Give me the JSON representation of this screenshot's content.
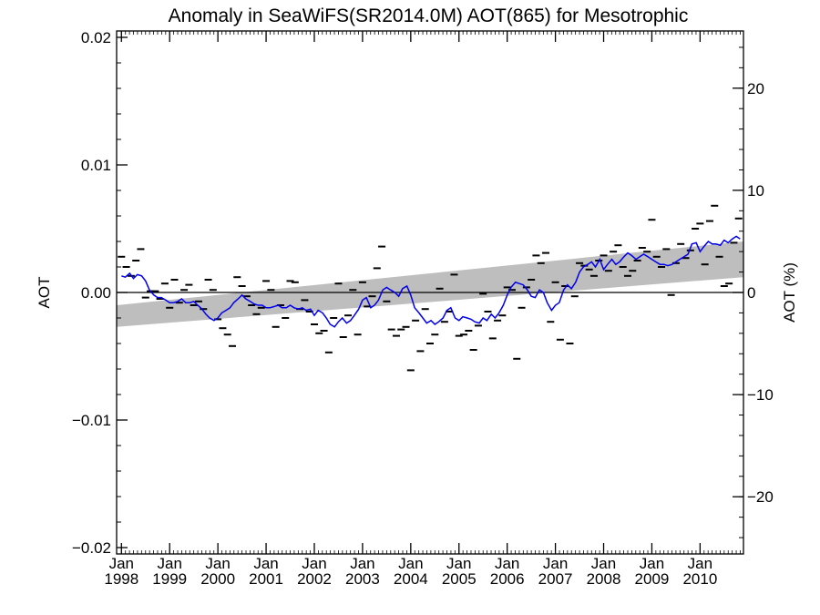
{
  "chart_data": {
    "type": "line",
    "title": "Anomaly in SeaWiFS(SR2014.0M) AOT(865) for Mesotrophic",
    "ylabel": "AOT",
    "y2label": "AOT (%)",
    "xlabel": "",
    "xlim": [
      1997.9,
      2010.9
    ],
    "ylim": [
      -0.0205,
      0.0205
    ],
    "y2lim": [
      -25.6,
      25.6
    ],
    "grid": false,
    "legend": "none",
    "x_ticks": [
      {
        "value": 1998,
        "month": "Jan",
        "year": "1998"
      },
      {
        "value": 1999,
        "month": "Jan",
        "year": "1999"
      },
      {
        "value": 2000,
        "month": "Jan",
        "year": "2000"
      },
      {
        "value": 2001,
        "month": "Jan",
        "year": "2001"
      },
      {
        "value": 2002,
        "month": "Jan",
        "year": "2002"
      },
      {
        "value": 2003,
        "month": "Jan",
        "year": "2003"
      },
      {
        "value": 2004,
        "month": "Jan",
        "year": "2004"
      },
      {
        "value": 2005,
        "month": "Jan",
        "year": "2005"
      },
      {
        "value": 2006,
        "month": "Jan",
        "year": "2006"
      },
      {
        "value": 2007,
        "month": "Jan",
        "year": "2007"
      },
      {
        "value": 2008,
        "month": "Jan",
        "year": "2008"
      },
      {
        "value": 2009,
        "month": "Jan",
        "year": "2009"
      },
      {
        "value": 2010,
        "month": "Jan",
        "year": "2010"
      }
    ],
    "y_ticks": [
      {
        "value": 0.02,
        "label": "0.02"
      },
      {
        "value": 0.01,
        "label": "0.01"
      },
      {
        "value": 0.0,
        "label": "0.00"
      },
      {
        "value": -0.01,
        "label": "−0.01"
      },
      {
        "value": -0.02,
        "label": "−0.02"
      }
    ],
    "y2_ticks": [
      {
        "value": 20,
        "label": "20"
      },
      {
        "value": 10,
        "label": "10"
      },
      {
        "value": 0,
        "label": "0"
      },
      {
        "value": -10,
        "label": "−10"
      },
      {
        "value": -20,
        "label": "−20"
      }
    ],
    "reference_line": 0.0,
    "trend_band": {
      "x": [
        1997.9,
        2010.9
      ],
      "lower": [
        -0.0027,
        0.0012
      ],
      "upper": [
        -0.001,
        0.004
      ],
      "color": "#bebebe"
    },
    "colors": {
      "running_mean": "#0000ee",
      "monthly": "#000000",
      "reference": "#000000"
    },
    "series": [
      {
        "type": "line",
        "x": [
          1998.0,
          1998.08,
          1998.17,
          1998.25,
          1998.33,
          1998.42,
          1998.5,
          1998.58,
          1998.67,
          1998.75,
          1998.83,
          1998.92,
          1999.0,
          1999.08,
          1999.17,
          1999.25,
          1999.33,
          1999.42,
          1999.5,
          1999.58,
          1999.67,
          1999.75,
          1999.83,
          1999.92,
          2000.0,
          2000.08,
          2000.17,
          2000.25,
          2000.33,
          2000.42,
          2000.5,
          2000.58,
          2000.67,
          2000.75,
          2000.83,
          2000.92,
          2001.0,
          2001.08,
          2001.17,
          2001.25,
          2001.33,
          2001.42,
          2001.5,
          2001.58,
          2001.67,
          2001.75,
          2001.83,
          2001.92,
          2002.0,
          2002.08,
          2002.17,
          2002.25,
          2002.33,
          2002.42,
          2002.5,
          2002.58,
          2002.67,
          2002.75,
          2002.83,
          2002.92,
          2003.0,
          2003.08,
          2003.17,
          2003.25,
          2003.33,
          2003.42,
          2003.5,
          2003.58,
          2003.67,
          2003.75,
          2003.83,
          2003.92,
          2004.0,
          2004.08,
          2004.17,
          2004.25,
          2004.33,
          2004.42,
          2004.5,
          2004.58,
          2004.67,
          2004.75,
          2004.83,
          2004.92,
          2005.0,
          2005.08,
          2005.17,
          2005.25,
          2005.33,
          2005.42,
          2005.5,
          2005.58,
          2005.67,
          2005.75,
          2005.83,
          2005.92,
          2006.0,
          2006.08,
          2006.17,
          2006.25,
          2006.33,
          2006.42,
          2006.5,
          2006.58,
          2006.67,
          2006.75,
          2006.83,
          2006.92,
          2007.0,
          2007.08,
          2007.17,
          2007.25,
          2007.33,
          2007.42,
          2007.5,
          2007.58,
          2007.67,
          2007.75,
          2007.83,
          2007.92,
          2008.0,
          2008.08,
          2008.17,
          2008.25,
          2008.33,
          2008.42,
          2008.5,
          2008.58,
          2008.67,
          2008.75,
          2008.83,
          2008.92,
          2009.0,
          2009.08,
          2009.17,
          2009.25,
          2009.33,
          2009.42,
          2009.5,
          2009.58,
          2009.67,
          2009.75,
          2009.83,
          2009.92,
          2010.0,
          2010.08,
          2010.17,
          2010.25,
          2010.33,
          2010.42,
          2010.5,
          2010.58,
          2010.67,
          2010.75,
          2010.83
        ],
        "y": [
          0.0013,
          0.0012,
          0.0015,
          0.0011,
          0.0014,
          0.0013,
          0.0009,
          0.0002,
          -0.0002,
          -0.0004,
          -0.0004,
          -0.0006,
          -0.0008,
          -0.0008,
          -0.0007,
          -0.0005,
          -0.0008,
          -0.0008,
          -0.0007,
          -0.001,
          -0.0013,
          -0.0017,
          -0.002,
          -0.0022,
          -0.002,
          -0.0016,
          -0.0014,
          -0.0012,
          -0.0008,
          -0.0005,
          -0.0002,
          -0.0005,
          -0.0007,
          -0.0009,
          -0.001,
          -0.001,
          -0.0012,
          -0.0012,
          -0.0011,
          -0.001,
          -0.0012,
          -0.0012,
          -0.001,
          -0.0012,
          -0.0013,
          -0.0012,
          -0.0014,
          -0.0013,
          -0.0018,
          -0.0014,
          -0.0016,
          -0.002,
          -0.0025,
          -0.0027,
          -0.0023,
          -0.002,
          -0.0024,
          -0.0022,
          -0.0018,
          -0.0013,
          -0.0006,
          -0.0004,
          -0.0012,
          -0.001,
          -0.0006,
          0.0002,
          0.0004,
          0.0002,
          0.0,
          -0.0003,
          0.0003,
          0.0005,
          -0.0002,
          -0.0012,
          -0.0016,
          -0.002,
          -0.0024,
          -0.0022,
          -0.0025,
          -0.0023,
          -0.002,
          -0.0014,
          -0.0012,
          -0.002,
          -0.0022,
          -0.0019,
          -0.002,
          -0.0021,
          -0.0023,
          -0.0024,
          -0.002,
          -0.0022,
          -0.0017,
          -0.002,
          -0.0016,
          -0.001,
          -0.0002,
          0.0004,
          0.0008,
          0.0007,
          0.0006,
          0.0002,
          -0.0003,
          -0.0004,
          0.0002,
          0.0,
          -0.0008,
          -0.0014,
          -0.001,
          -0.0008,
          0.0002,
          0.0006,
          0.0003,
          0.0008,
          0.0016,
          0.002,
          0.0022,
          0.0024,
          0.002,
          0.0026,
          0.0018,
          0.0022,
          0.0026,
          0.0022,
          0.0024,
          0.0028,
          0.0031,
          0.0029,
          0.0026,
          0.0028,
          0.003,
          0.0028,
          0.0026,
          0.0024,
          0.0022,
          0.0022,
          0.0021,
          0.0022,
          0.0024,
          0.0026,
          0.0028,
          0.003,
          0.0038,
          0.0039,
          0.0032,
          0.0036,
          0.004,
          0.0038,
          0.0038,
          0.0037,
          0.0041,
          0.0039,
          0.0042,
          0.0044,
          0.0042
        ]
      },
      {
        "type": "scatter",
        "marker": "dash",
        "x": [
          1998.0,
          1998.1,
          1998.2,
          1998.3,
          1998.4,
          1998.5,
          1998.6,
          1998.7,
          1998.8,
          1998.9,
          1999.0,
          1999.1,
          1999.2,
          1999.3,
          1999.4,
          1999.5,
          1999.6,
          1999.7,
          1999.8,
          1999.9,
          2000.0,
          2000.1,
          2000.2,
          2000.3,
          2000.4,
          2000.5,
          2000.6,
          2000.7,
          2000.8,
          2000.9,
          2001.0,
          2001.1,
          2001.2,
          2001.3,
          2001.4,
          2001.5,
          2001.6,
          2001.7,
          2001.8,
          2001.9,
          2002.0,
          2002.1,
          2002.2,
          2002.3,
          2002.4,
          2002.5,
          2002.6,
          2002.7,
          2002.8,
          2002.9,
          2003.0,
          2003.1,
          2003.2,
          2003.3,
          2003.4,
          2003.5,
          2003.6,
          2003.7,
          2003.8,
          2003.9,
          2004.0,
          2004.1,
          2004.2,
          2004.3,
          2004.4,
          2004.5,
          2004.6,
          2004.7,
          2004.8,
          2004.9,
          2005.0,
          2005.1,
          2005.2,
          2005.3,
          2005.4,
          2005.5,
          2005.6,
          2005.7,
          2005.8,
          2005.9,
          2006.0,
          2006.1,
          2006.2,
          2006.3,
          2006.4,
          2006.5,
          2006.6,
          2006.7,
          2006.8,
          2006.9,
          2007.0,
          2007.1,
          2007.2,
          2007.3,
          2007.4,
          2007.5,
          2007.6,
          2007.7,
          2007.8,
          2007.9,
          2008.0,
          2008.1,
          2008.2,
          2008.3,
          2008.4,
          2008.5,
          2008.6,
          2008.7,
          2008.8,
          2008.9,
          2009.0,
          2009.1,
          2009.2,
          2009.3,
          2009.4,
          2009.5,
          2009.6,
          2009.7,
          2009.8,
          2009.9,
          2010.0,
          2010.1,
          2010.2,
          2010.3,
          2010.4,
          2010.5,
          2010.6,
          2010.7,
          2010.8
        ],
        "y": [
          0.0028,
          0.002,
          0.0013,
          0.0025,
          0.0034,
          -0.0004,
          0.0001,
          0.0001,
          -0.0005,
          0.0007,
          -0.0012,
          0.001,
          -0.0008,
          0.0002,
          0.0006,
          -0.001,
          -0.0007,
          -0.0013,
          0.001,
          0.0002,
          -0.0021,
          -0.0028,
          -0.0033,
          -0.0042,
          0.0012,
          0.0005,
          -0.0003,
          -0.001,
          -0.0017,
          -0.0012,
          0.0009,
          0.0002,
          -0.0027,
          -0.001,
          -0.002,
          0.0009,
          0.0008,
          -0.0013,
          -0.0006,
          -0.0015,
          -0.0025,
          -0.0032,
          -0.003,
          -0.0047,
          -0.002,
          0.0007,
          -0.0035,
          -0.0018,
          0.0002,
          -0.0033,
          0.0008,
          -0.0011,
          -0.0003,
          0.0019,
          0.0036,
          -0.0007,
          -0.0029,
          -0.0034,
          -0.0029,
          -0.0027,
          -0.0061,
          -0.0022,
          -0.0046,
          -0.0013,
          -0.004,
          -0.0033,
          0.0003,
          -0.0023,
          -0.0015,
          0.0014,
          -0.0034,
          -0.0033,
          -0.003,
          -0.0045,
          -0.0026,
          -0.0001,
          -0.0015,
          -0.0036,
          -0.0022,
          -0.0018,
          0.0004,
          0.0002,
          -0.0052,
          -0.0012,
          0.0004,
          0.001,
          0.0029,
          0.0023,
          0.0031,
          -0.0023,
          0.0008,
          -0.0037,
          0.0005,
          -0.004,
          -0.0003,
          0.0023,
          0.0021,
          0.0018,
          0.0013,
          0.0025,
          0.0029,
          0.0017,
          0.0032,
          0.0037,
          0.002,
          0.0013,
          0.0017,
          0.0025,
          0.0035,
          0.0032,
          0.0057,
          0.0028,
          0.002,
          0.0034,
          -0.0002,
          0.0023,
          0.0038,
          0.0027,
          0.0033,
          0.005,
          0.0054,
          0.0022,
          0.0056,
          0.0068,
          0.0028,
          0.0005,
          0.0007,
          0.0039,
          0.0058
        ]
      }
    ]
  }
}
